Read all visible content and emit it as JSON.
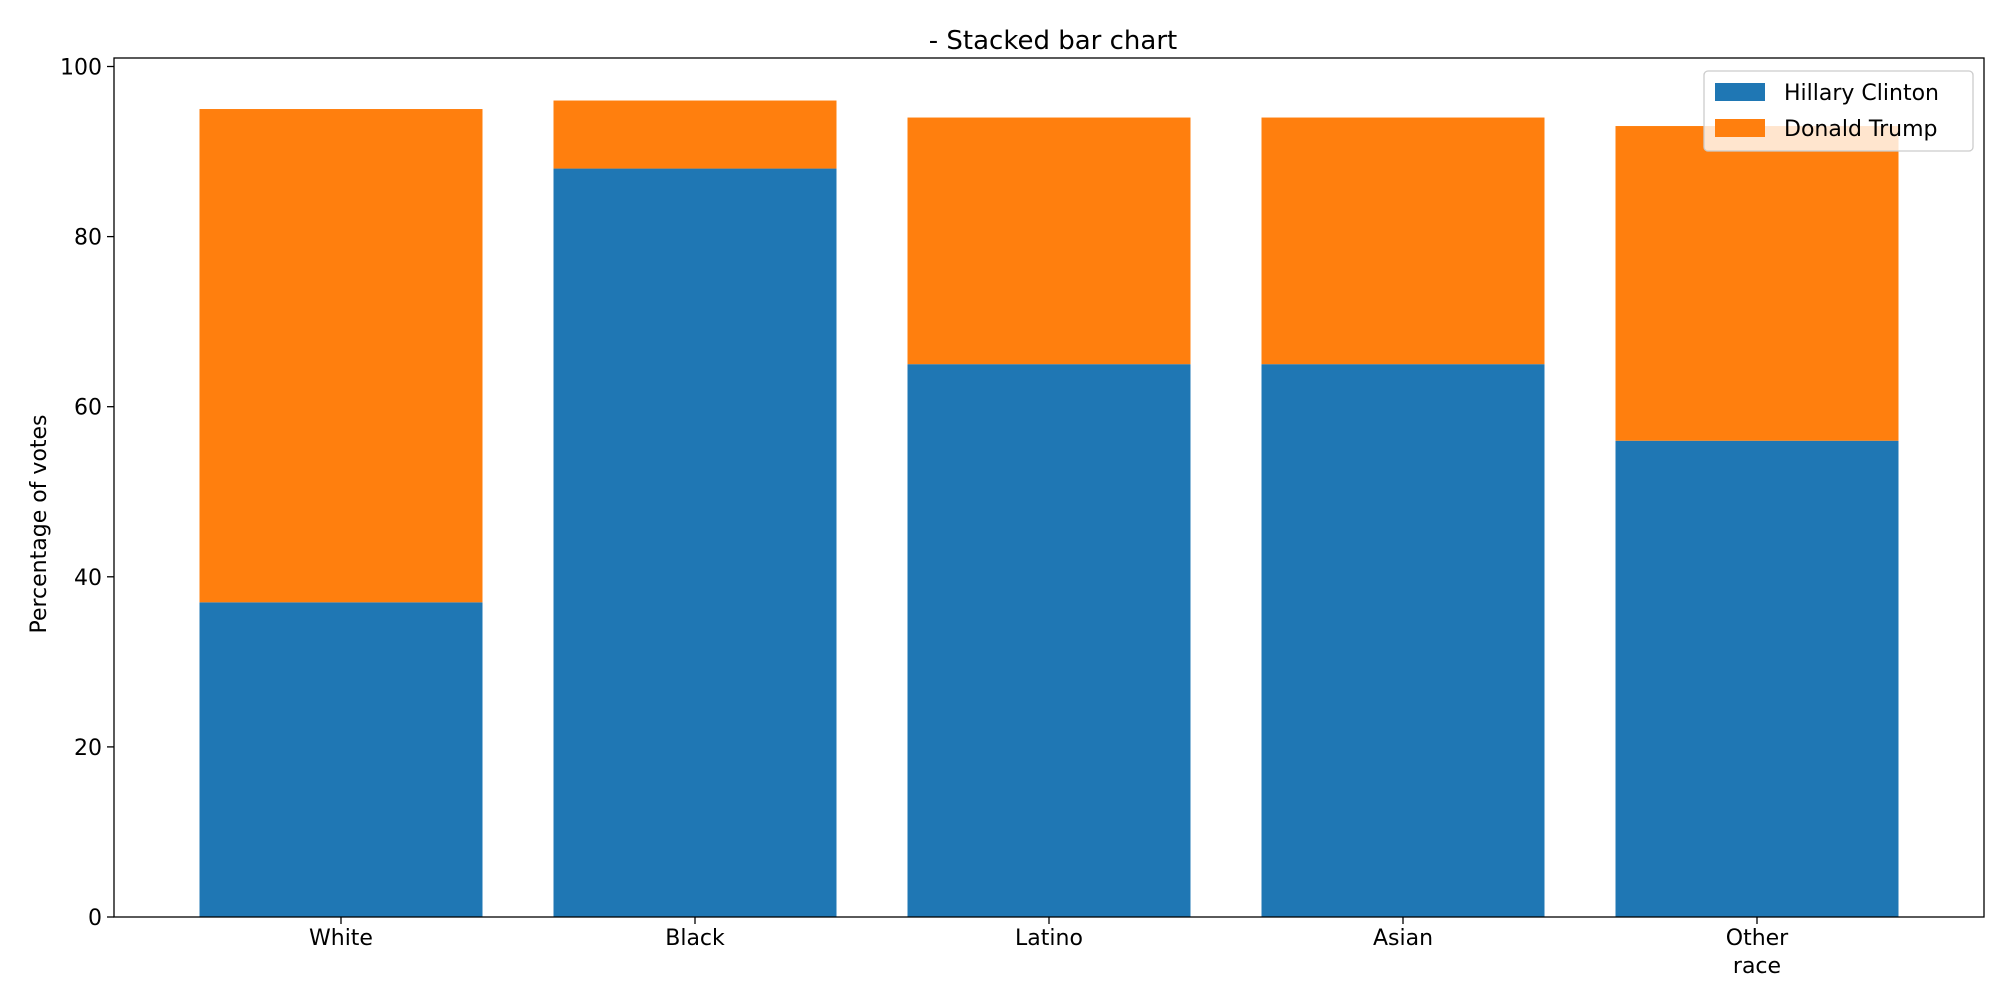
{
  "chart_data": {
    "type": "bar",
    "stacked": true,
    "title": "- Stacked bar chart",
    "xlabel": "",
    "ylabel": "Percentage of votes",
    "categories": [
      "White",
      "Black",
      "Latino",
      "Asian",
      "Other\nrace"
    ],
    "series": [
      {
        "name": "Hillary Clinton",
        "color": "#1f77b4",
        "values": [
          37,
          88,
          65,
          65,
          56
        ]
      },
      {
        "name": "Donald Trump",
        "color": "#ff7f0e",
        "values": [
          58,
          8,
          29,
          29,
          37
        ]
      }
    ],
    "ylim": [
      0,
      101
    ],
    "yticks": [
      0,
      20,
      40,
      60,
      80,
      100
    ],
    "grid": false,
    "legend_position": "top-right"
  }
}
